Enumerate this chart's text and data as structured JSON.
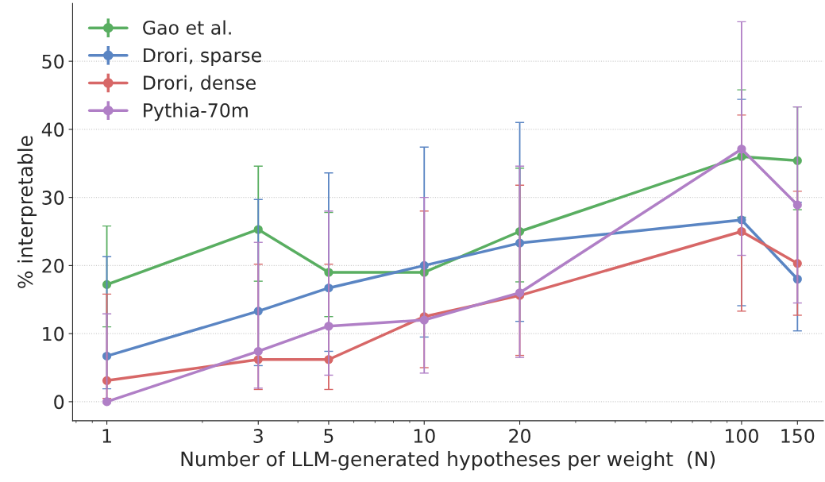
{
  "chart_data": {
    "type": "line",
    "xlabel": "Number of LLM-generated hypotheses per weight  (N)",
    "ylabel": "% interpretable",
    "x": [
      1,
      3,
      5,
      10,
      20,
      100,
      150
    ],
    "series": [
      {
        "name": "Gao et al.",
        "color": "#59ae61",
        "values": [
          17.2,
          25.3,
          19.0,
          19.0,
          25.0,
          36.0,
          35.4
        ],
        "errors": [
          [
            11.0,
            25.8
          ],
          [
            17.7,
            34.6
          ],
          [
            12.5,
            27.8
          ],
          null,
          [
            17.6,
            34.3
          ],
          [
            27.1,
            45.8
          ],
          [
            28.2,
            43.3
          ]
        ]
      },
      {
        "name": "Drori, sparse",
        "color": "#5a85c3",
        "values": [
          6.7,
          13.3,
          16.7,
          20.0,
          23.3,
          26.7,
          18.0
        ],
        "errors": [
          [
            1.9,
            21.3
          ],
          [
            5.3,
            29.7
          ],
          [
            7.4,
            33.6
          ],
          [
            9.5,
            37.4
          ],
          [
            11.8,
            41.0
          ],
          [
            14.1,
            44.4
          ],
          [
            10.4,
            29.3
          ]
        ]
      },
      {
        "name": "Drori, dense",
        "color": "#d76767",
        "values": [
          3.1,
          6.2,
          6.2,
          12.5,
          15.6,
          25.0,
          20.3
        ],
        "errors": [
          [
            0.5,
            15.8
          ],
          [
            1.8,
            20.2
          ],
          [
            1.8,
            20.2
          ],
          [
            5.0,
            28.0
          ],
          [
            6.8,
            31.8
          ],
          [
            13.3,
            42.1
          ],
          [
            12.7,
            30.9
          ]
        ]
      },
      {
        "name": "Pythia-70m",
        "color": "#b07fc6",
        "values": [
          0.0,
          7.4,
          11.1,
          12.0,
          16.0,
          37.1,
          28.9
        ],
        "errors": [
          [
            0.0,
            12.9
          ],
          [
            2.0,
            23.4
          ],
          [
            3.9,
            28.0
          ],
          [
            4.2,
            30.0
          ],
          [
            6.5,
            34.6
          ],
          [
            21.5,
            55.8
          ],
          [
            14.5,
            43.3
          ]
        ]
      }
    ],
    "log": "x",
    "xlim": [
      0.78,
      181
    ],
    "xticks": [
      1,
      3,
      5,
      10,
      20,
      100,
      150
    ],
    "ylim": [
      -2.8,
      58.5
    ],
    "yticks": [
      0,
      10,
      20,
      30,
      40,
      50
    ],
    "grid": "y",
    "legend": "top left",
    "marker": "circle",
    "line_style": "solid"
  }
}
